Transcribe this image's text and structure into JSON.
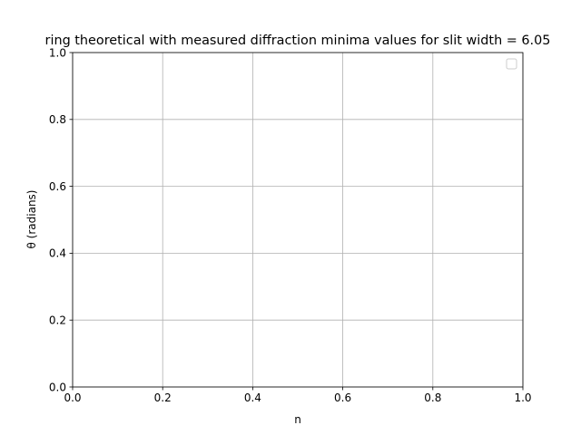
{
  "chart_data": {
    "type": "line",
    "title": "ring theoretical with measured diffraction minima values for slit width = 6.05",
    "xlabel": "n",
    "ylabel": "θ (radians)",
    "xlim": [
      0.0,
      1.0
    ],
    "ylim": [
      0.0,
      1.0
    ],
    "xticks": [
      0.0,
      0.2,
      0.4,
      0.6,
      0.8,
      1.0
    ],
    "yticks": [
      0.0,
      0.2,
      0.4,
      0.6,
      0.8,
      1.0
    ],
    "xtick_labels": [
      "0.0",
      "0.2",
      "0.4",
      "0.6",
      "0.8",
      "1.0"
    ],
    "ytick_labels": [
      "0.0",
      "0.2",
      "0.4",
      "0.6",
      "0.8",
      "1.0"
    ],
    "grid": true,
    "legend": {
      "placement": "upper right",
      "entries": []
    },
    "series": []
  },
  "colors": {
    "grid": "#b0b0b0",
    "axes": "#000000",
    "legend_border": "#cccccc"
  }
}
